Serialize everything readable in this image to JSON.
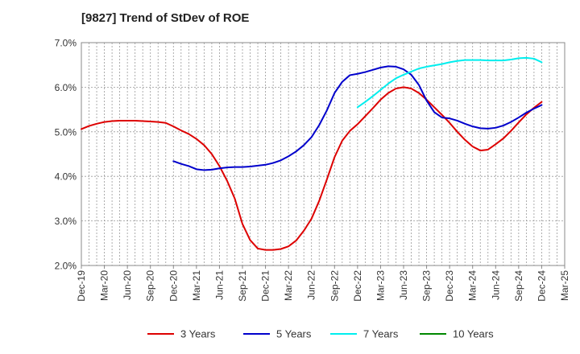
{
  "chart_data": {
    "type": "line",
    "title": "[9827]  Trend of StDev of ROE",
    "xlabel": "",
    "ylabel": "",
    "x_ticks": [
      "Dec-19",
      "Mar-20",
      "Jun-20",
      "Sep-20",
      "Dec-20",
      "Mar-21",
      "Jun-21",
      "Sep-21",
      "Dec-21",
      "Mar-22",
      "Jun-22",
      "Sep-22",
      "Dec-22",
      "Mar-23",
      "Jun-23",
      "Sep-23",
      "Dec-23",
      "Mar-24",
      "Jun-24",
      "Sep-24",
      "Dec-24",
      "Mar-25"
    ],
    "y_ticks": [
      "2.0%",
      "3.0%",
      "4.0%",
      "5.0%",
      "6.0%",
      "7.0%"
    ],
    "ylim": [
      2.0,
      7.0
    ],
    "grid": true,
    "legend_position": "bottom",
    "series": [
      {
        "name": "3 Years",
        "color": "#dd0000",
        "points": [
          [
            "Dec-19",
            5.06
          ],
          [
            "Jan-20",
            5.13
          ],
          [
            "Feb-20",
            5.18
          ],
          [
            "Mar-20",
            5.22
          ],
          [
            "Apr-20",
            5.24
          ],
          [
            "May-20",
            5.25
          ],
          [
            "Jun-20",
            5.25
          ],
          [
            "Jul-20",
            5.25
          ],
          [
            "Aug-20",
            5.24
          ],
          [
            "Sep-20",
            5.23
          ],
          [
            "Oct-20",
            5.22
          ],
          [
            "Nov-20",
            5.2
          ],
          [
            "Dec-20",
            5.12
          ],
          [
            "Jan-21",
            5.03
          ],
          [
            "Feb-21",
            4.95
          ],
          [
            "Mar-21",
            4.84
          ],
          [
            "Apr-21",
            4.7
          ],
          [
            "May-21",
            4.5
          ],
          [
            "Jun-21",
            4.23
          ],
          [
            "Jul-21",
            3.9
          ],
          [
            "Aug-21",
            3.5
          ],
          [
            "Sep-21",
            2.93
          ],
          [
            "Oct-21",
            2.57
          ],
          [
            "Nov-21",
            2.38
          ],
          [
            "Dec-21",
            2.35
          ],
          [
            "Jan-22",
            2.35
          ],
          [
            "Feb-22",
            2.37
          ],
          [
            "Mar-22",
            2.43
          ],
          [
            "Apr-22",
            2.56
          ],
          [
            "May-22",
            2.78
          ],
          [
            "Jun-22",
            3.05
          ],
          [
            "Jul-22",
            3.45
          ],
          [
            "Aug-22",
            3.93
          ],
          [
            "Sep-22",
            4.43
          ],
          [
            "Oct-22",
            4.8
          ],
          [
            "Nov-22",
            5.02
          ],
          [
            "Dec-22",
            5.17
          ],
          [
            "Jan-23",
            5.35
          ],
          [
            "Feb-23",
            5.53
          ],
          [
            "Mar-23",
            5.72
          ],
          [
            "Apr-23",
            5.87
          ],
          [
            "May-23",
            5.97
          ],
          [
            "Jun-23",
            6.0
          ],
          [
            "Jul-23",
            5.97
          ],
          [
            "Aug-23",
            5.87
          ],
          [
            "Sep-23",
            5.72
          ],
          [
            "Oct-23",
            5.55
          ],
          [
            "Nov-23",
            5.38
          ],
          [
            "Dec-23",
            5.2
          ],
          [
            "Jan-24",
            5.0
          ],
          [
            "Feb-24",
            4.82
          ],
          [
            "Mar-24",
            4.67
          ],
          [
            "Apr-24",
            4.58
          ],
          [
            "May-24",
            4.6
          ],
          [
            "Jun-24",
            4.72
          ],
          [
            "Jul-24",
            4.85
          ],
          [
            "Aug-24",
            5.02
          ],
          [
            "Sep-24",
            5.21
          ],
          [
            "Oct-24",
            5.39
          ],
          [
            "Nov-24",
            5.54
          ],
          [
            "Dec-24",
            5.67
          ]
        ]
      },
      {
        "name": "5 Years",
        "color": "#0000cc",
        "points": [
          [
            "Dec-20",
            4.34
          ],
          [
            "Jan-21",
            4.28
          ],
          [
            "Feb-21",
            4.23
          ],
          [
            "Mar-21",
            4.16
          ],
          [
            "Apr-21",
            4.14
          ],
          [
            "May-21",
            4.15
          ],
          [
            "Jun-21",
            4.18
          ],
          [
            "Jul-21",
            4.2
          ],
          [
            "Aug-21",
            4.21
          ],
          [
            "Sep-21",
            4.21
          ],
          [
            "Oct-21",
            4.22
          ],
          [
            "Nov-21",
            4.24
          ],
          [
            "Dec-21",
            4.26
          ],
          [
            "Jan-22",
            4.3
          ],
          [
            "Feb-22",
            4.36
          ],
          [
            "Mar-22",
            4.45
          ],
          [
            "Apr-22",
            4.56
          ],
          [
            "May-22",
            4.7
          ],
          [
            "Jun-22",
            4.88
          ],
          [
            "Jul-22",
            5.15
          ],
          [
            "Aug-22",
            5.48
          ],
          [
            "Sep-22",
            5.87
          ],
          [
            "Oct-22",
            6.12
          ],
          [
            "Nov-22",
            6.27
          ],
          [
            "Dec-22",
            6.3
          ],
          [
            "Jan-23",
            6.34
          ],
          [
            "Feb-23",
            6.39
          ],
          [
            "Mar-23",
            6.44
          ],
          [
            "Apr-23",
            6.47
          ],
          [
            "May-23",
            6.46
          ],
          [
            "Jun-23",
            6.4
          ],
          [
            "Jul-23",
            6.28
          ],
          [
            "Aug-23",
            6.05
          ],
          [
            "Sep-23",
            5.7
          ],
          [
            "Oct-23",
            5.44
          ],
          [
            "Nov-23",
            5.32
          ],
          [
            "Dec-23",
            5.3
          ],
          [
            "Jan-24",
            5.25
          ],
          [
            "Feb-24",
            5.18
          ],
          [
            "Mar-24",
            5.12
          ],
          [
            "Apr-24",
            5.08
          ],
          [
            "May-24",
            5.07
          ],
          [
            "Jun-24",
            5.09
          ],
          [
            "Jul-24",
            5.14
          ],
          [
            "Aug-24",
            5.22
          ],
          [
            "Sep-24",
            5.32
          ],
          [
            "Oct-24",
            5.43
          ],
          [
            "Nov-24",
            5.52
          ],
          [
            "Dec-24",
            5.6
          ]
        ]
      },
      {
        "name": "7 Years",
        "color": "#00eeee",
        "points": [
          [
            "Dec-22",
            5.55
          ],
          [
            "Jan-23",
            5.67
          ],
          [
            "Feb-23",
            5.8
          ],
          [
            "Mar-23",
            5.94
          ],
          [
            "Apr-23",
            6.08
          ],
          [
            "May-23",
            6.2
          ],
          [
            "Jun-23",
            6.28
          ],
          [
            "Jul-23",
            6.35
          ],
          [
            "Aug-23",
            6.42
          ],
          [
            "Sep-23",
            6.46
          ],
          [
            "Oct-23",
            6.49
          ],
          [
            "Nov-23",
            6.52
          ],
          [
            "Dec-23",
            6.56
          ],
          [
            "Jan-24",
            6.59
          ],
          [
            "Feb-24",
            6.61
          ],
          [
            "Mar-24",
            6.61
          ],
          [
            "Apr-24",
            6.61
          ],
          [
            "May-24",
            6.6
          ],
          [
            "Jun-24",
            6.6
          ],
          [
            "Jul-24",
            6.6
          ],
          [
            "Aug-24",
            6.62
          ],
          [
            "Sep-24",
            6.65
          ],
          [
            "Oct-24",
            6.66
          ],
          [
            "Nov-24",
            6.64
          ],
          [
            "Dec-24",
            6.56
          ]
        ]
      },
      {
        "name": "10 Years",
        "color": "#008800",
        "points": []
      }
    ]
  }
}
